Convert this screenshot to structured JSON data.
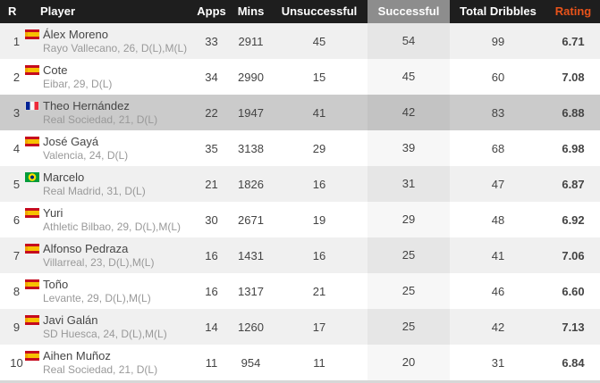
{
  "table": {
    "headers": {
      "rank": "R",
      "player": "Player",
      "apps": "Apps",
      "mins": "Mins",
      "unsuccessful": "Unsuccessful",
      "successful": "Successful",
      "total": "Total Dribbles",
      "rating": "Rating"
    },
    "sorted_column": "Successful",
    "sort_order": "descending"
  },
  "colors": {
    "header_bg": "#1e1e1e",
    "header_text": "#ffffff",
    "sorted_header_bg": "#8d8d8d",
    "rating_header_text": "#e8531a",
    "rating_value_text": "#dd5b3f",
    "row_alt_bg": "#f0f0f0",
    "active_row_bg": "#cbcbcb"
  },
  "rows": [
    {
      "rank": "1",
      "flag": "es",
      "state": "normal",
      "name": "Álex Moreno",
      "meta": "Rayo Vallecano, 26, D(L),M(L)",
      "apps": "33",
      "mins": "2911",
      "unsuccessful": "45",
      "successful": "54",
      "total": "99",
      "rating": "6.71"
    },
    {
      "rank": "2",
      "flag": "es",
      "state": "normal",
      "name": "Cote",
      "meta": "Eibar, 29, D(L)",
      "apps": "34",
      "mins": "2990",
      "unsuccessful": "15",
      "successful": "45",
      "total": "60",
      "rating": "7.08"
    },
    {
      "rank": "3",
      "flag": "fr",
      "state": "active",
      "name": "Theo Hernández",
      "meta": "Real Sociedad, 21, D(L)",
      "apps": "22",
      "mins": "1947",
      "unsuccessful": "41",
      "successful": "42",
      "total": "83",
      "rating": "6.88"
    },
    {
      "rank": "4",
      "flag": "es",
      "state": "normal",
      "name": "José Gayá",
      "meta": "Valencia, 24, D(L)",
      "apps": "35",
      "mins": "3138",
      "unsuccessful": "29",
      "successful": "39",
      "total": "68",
      "rating": "6.98"
    },
    {
      "rank": "5",
      "flag": "br",
      "state": "normal",
      "name": "Marcelo",
      "meta": "Real Madrid, 31, D(L)",
      "apps": "21",
      "mins": "1826",
      "unsuccessful": "16",
      "successful": "31",
      "total": "47",
      "rating": "6.87"
    },
    {
      "rank": "6",
      "flag": "es",
      "state": "normal",
      "name": "Yuri",
      "meta": "Athletic Bilbao, 29, D(L),M(L)",
      "apps": "30",
      "mins": "2671",
      "unsuccessful": "19",
      "successful": "29",
      "total": "48",
      "rating": "6.92"
    },
    {
      "rank": "7",
      "flag": "es",
      "state": "normal",
      "name": "Alfonso Pedraza",
      "meta": "Villarreal, 23, D(L),M(L)",
      "apps": "16",
      "mins": "1431",
      "unsuccessful": "16",
      "successful": "25",
      "total": "41",
      "rating": "7.06"
    },
    {
      "rank": "8",
      "flag": "es",
      "state": "normal",
      "name": "Toño",
      "meta": "Levante, 29, D(L),M(L)",
      "apps": "16",
      "mins": "1317",
      "unsuccessful": "21",
      "successful": "25",
      "total": "46",
      "rating": "6.60"
    },
    {
      "rank": "9",
      "flag": "es",
      "state": "normal",
      "name": "Javi Galán",
      "meta": "SD Huesca, 24, D(L),M(L)",
      "apps": "14",
      "mins": "1260",
      "unsuccessful": "17",
      "successful": "25",
      "total": "42",
      "rating": "7.13"
    },
    {
      "rank": "10",
      "flag": "es",
      "state": "normal",
      "name": "Aihen Muñoz",
      "meta": "Real Sociedad, 21, D(L)",
      "apps": "11",
      "mins": "954",
      "unsuccessful": "11",
      "successful": "20",
      "total": "31",
      "rating": "6.84"
    }
  ]
}
